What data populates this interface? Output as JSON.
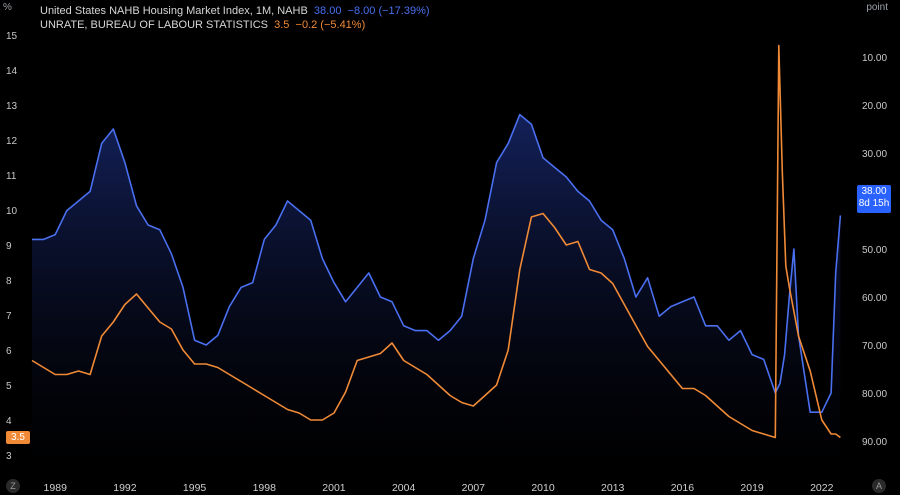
{
  "legend": {
    "series1_name": "United States NAHB Housing Market Index, 1M, NAHB",
    "series1_value": "38.00",
    "series1_change": "−8.00 (−17.39%)",
    "series2_name": "UNRATE, BUREAU OF LABOUR STATISTICS",
    "series2_value": "3.5",
    "series2_change": "−0.2 (−5.41%)"
  },
  "left_axis_unit": "%",
  "right_axis_unit": "point",
  "left_badge": "3.5",
  "right_badge": {
    "value": "38.00",
    "countdown": "8d 15h"
  },
  "corner_left_button": "Z",
  "corner_right_button": "A",
  "colors": {
    "nahb": "#4a6ff0",
    "unrate": "#f08a36",
    "badge_blue": "#2962ff",
    "badge_orange": "#f08a36"
  },
  "chart_data": {
    "type": "line",
    "x_ticks": [
      "1989",
      "1992",
      "1995",
      "1998",
      "2001",
      "2004",
      "2007",
      "2010",
      "2013",
      "2016",
      "2019",
      "2022"
    ],
    "left_axis": {
      "unit": "%",
      "ticks": [
        "15",
        "14",
        "13",
        "12",
        "11",
        "10",
        "9",
        "8",
        "7",
        "6",
        "5",
        "4",
        "3"
      ],
      "range": [
        3,
        15
      ]
    },
    "right_axis": {
      "unit": "point",
      "ticks": [
        "10.00",
        "20.00",
        "30.00",
        "40.00",
        "50.00",
        "60.00",
        "70.00",
        "80.00",
        "90.00"
      ],
      "range": [
        0,
        92
      ],
      "inverted": true
    },
    "series": [
      {
        "name": "United States NAHB Housing Market Index, 1M, NAHB",
        "axis": "right",
        "x": [
          1988.0,
          1988.5,
          1989.0,
          1989.5,
          1990.0,
          1990.5,
          1991.0,
          1991.5,
          1992.0,
          1992.5,
          1993.0,
          1993.5,
          1994.0,
          1994.5,
          1995.0,
          1995.5,
          1996.0,
          1996.5,
          1997.0,
          1997.5,
          1998.0,
          1998.5,
          1999.0,
          1999.5,
          2000.0,
          2000.5,
          2001.0,
          2001.5,
          2002.0,
          2002.5,
          2003.0,
          2003.5,
          2004.0,
          2004.5,
          2005.0,
          2005.5,
          2006.0,
          2006.5,
          2007.0,
          2007.5,
          2008.0,
          2008.5,
          2009.0,
          2009.5,
          2010.0,
          2010.5,
          2011.0,
          2011.5,
          2012.0,
          2012.5,
          2013.0,
          2013.5,
          2014.0,
          2014.5,
          2015.0,
          2015.5,
          2016.0,
          2016.5,
          2017.0,
          2017.5,
          2018.0,
          2018.5,
          2019.0,
          2019.5,
          2020.0,
          2020.2,
          2020.4,
          2020.6,
          2020.8,
          2021.0,
          2021.5,
          2022.0,
          2022.4,
          2022.6,
          2022.8
        ],
        "values": [
          48,
          48,
          47,
          42,
          40,
          38,
          28,
          25,
          32,
          41,
          45,
          46,
          51,
          58,
          69,
          70,
          68,
          62,
          58,
          57,
          48,
          45,
          40,
          42,
          44,
          52,
          57,
          61,
          58,
          55,
          60,
          61,
          66,
          67,
          67,
          69,
          67,
          64,
          52,
          44,
          32,
          28,
          22,
          24,
          31,
          33,
          35,
          38,
          40,
          44,
          46,
          52,
          60,
          56,
          64,
          62,
          61,
          60,
          66,
          66,
          69,
          67,
          72,
          73,
          80,
          78,
          72,
          60,
          50,
          68,
          84,
          84,
          80,
          55,
          43
        ]
      },
      {
        "name": "UNRATE, BUREAU OF LABOUR STATISTICS",
        "axis": "left",
        "x": [
          1988.0,
          1988.5,
          1989.0,
          1989.5,
          1990.0,
          1990.5,
          1991.0,
          1991.5,
          1992.0,
          1992.5,
          1993.0,
          1993.5,
          1994.0,
          1994.5,
          1995.0,
          1995.5,
          1996.0,
          1996.5,
          1997.0,
          1997.5,
          1998.0,
          1998.5,
          1999.0,
          1999.5,
          2000.0,
          2000.5,
          2001.0,
          2001.5,
          2002.0,
          2002.5,
          2003.0,
          2003.5,
          2004.0,
          2004.5,
          2005.0,
          2005.5,
          2006.0,
          2006.5,
          2007.0,
          2007.5,
          2008.0,
          2008.5,
          2009.0,
          2009.5,
          2010.0,
          2010.5,
          2011.0,
          2011.5,
          2012.0,
          2012.5,
          2013.0,
          2013.5,
          2014.0,
          2014.5,
          2015.0,
          2015.5,
          2016.0,
          2016.5,
          2017.0,
          2017.5,
          2018.0,
          2018.5,
          2019.0,
          2019.5,
          2020.0,
          2020.15,
          2020.3,
          2020.45,
          2020.6,
          2021.0,
          2021.5,
          2022.0,
          2022.4,
          2022.6,
          2022.8
        ],
        "values": [
          5.7,
          5.5,
          5.3,
          5.3,
          5.4,
          5.3,
          6.4,
          6.8,
          7.3,
          7.6,
          7.2,
          6.8,
          6.6,
          6.0,
          5.6,
          5.6,
          5.5,
          5.3,
          5.1,
          4.9,
          4.7,
          4.5,
          4.3,
          4.2,
          4.0,
          4.0,
          4.2,
          4.8,
          5.7,
          5.8,
          5.9,
          6.2,
          5.7,
          5.5,
          5.3,
          5.0,
          4.7,
          4.5,
          4.4,
          4.7,
          5.0,
          6.0,
          8.3,
          9.8,
          9.9,
          9.5,
          9.0,
          9.1,
          8.3,
          8.2,
          7.9,
          7.3,
          6.7,
          6.1,
          5.7,
          5.3,
          4.9,
          4.9,
          4.7,
          4.4,
          4.1,
          3.9,
          3.7,
          3.6,
          3.5,
          14.7,
          11.1,
          8.4,
          7.8,
          6.4,
          5.4,
          4.0,
          3.6,
          3.6,
          3.5
        ]
      }
    ]
  }
}
